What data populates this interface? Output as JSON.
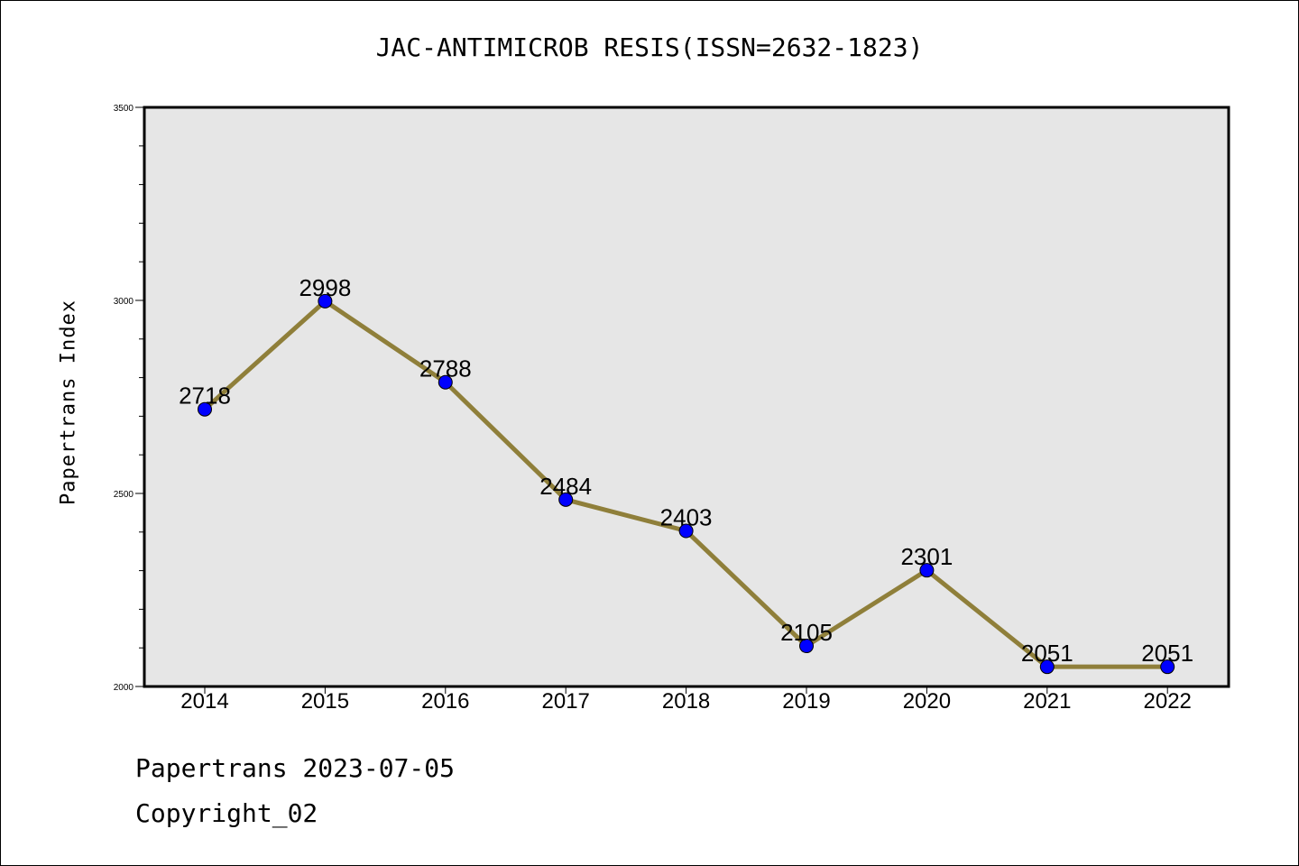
{
  "chart_data": {
    "type": "line",
    "title": "JAC-ANTIMICROB RESIS(ISSN=2632-1823)",
    "xlabel": "",
    "ylabel": "Papertrans Index",
    "categories": [
      "2014",
      "2015",
      "2016",
      "2017",
      "2018",
      "2019",
      "2020",
      "2021",
      "2022"
    ],
    "values": [
      2718,
      2998,
      2788,
      2484,
      2403,
      2105,
      2301,
      2051,
      2051
    ],
    "data_labels": [
      "2718",
      "2998",
      "2788",
      "2484",
      "2403",
      "2105",
      "2301",
      "2051",
      "2051"
    ],
    "ylim": [
      2000,
      3500
    ],
    "yticks": [
      2000,
      2500,
      3000,
      3500
    ],
    "grid": false,
    "colors": {
      "line": "#8f7f3a",
      "marker": "#0000ff",
      "plot_background": "#e6e6e6"
    }
  },
  "footer": {
    "line1": "Papertrans 2023-07-05",
    "line2": "Copyright_02"
  }
}
